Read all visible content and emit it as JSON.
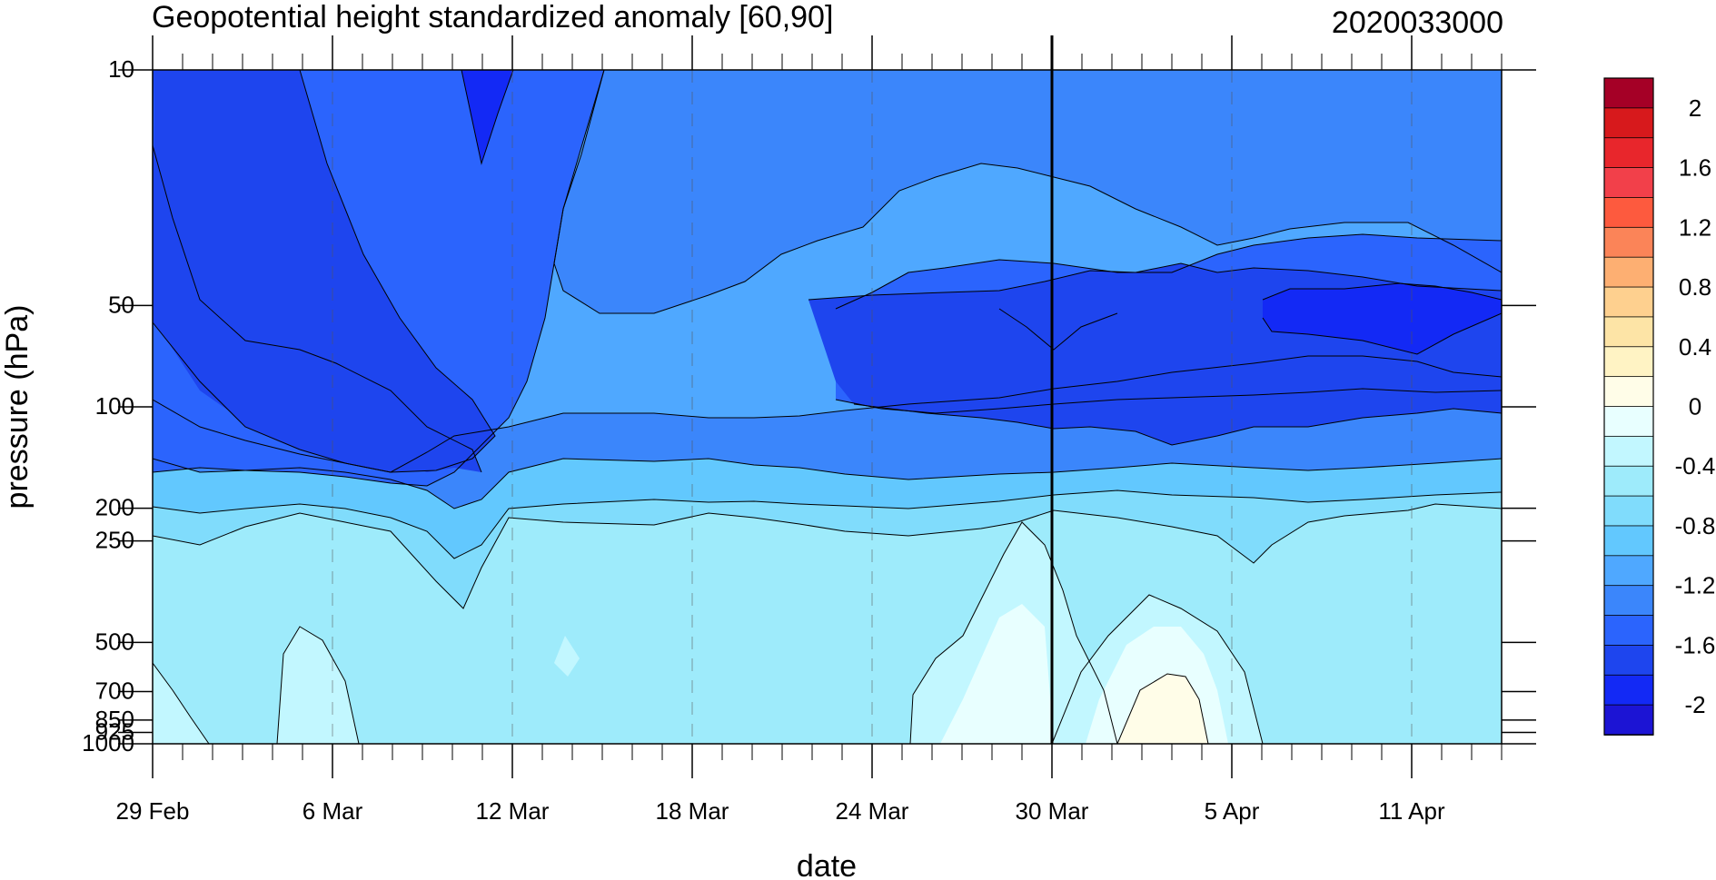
{
  "chart_data": {
    "type": "heatmap",
    "title": "Geopotential height standardized anomaly [60,90]",
    "date_stamp": "2020033000",
    "xlabel": "date",
    "ylabel": "pressure (hPa)",
    "x_ticks": [
      "29 Feb",
      "6 Mar",
      "12 Mar",
      "18 Mar",
      "24 Mar",
      "30 Mar",
      "5 Apr",
      "11 Apr"
    ],
    "x_tick_days": [
      0,
      6,
      12,
      18,
      24,
      30,
      36,
      42
    ],
    "x_range_days": [
      0,
      45
    ],
    "forecast_start_day": 30,
    "y_scale": "log",
    "y_reversed": true,
    "y_ticks": [
      "10",
      "50",
      "100",
      "200",
      "250",
      "500",
      "700",
      "850",
      "925",
      "1000"
    ],
    "y_tick_values": [
      10,
      50,
      100,
      200,
      250,
      500,
      700,
      850,
      925,
      1000
    ],
    "y_range": [
      1000,
      10
    ],
    "colorbar": {
      "labels": [
        "2",
        "1.6",
        "1.2",
        "0.8",
        "0.4",
        "0",
        "-0.4",
        "-0.8",
        "-1.2",
        "-1.6",
        "-2"
      ],
      "levels": [
        2.2,
        2.0,
        1.8,
        1.6,
        1.4,
        1.2,
        1.0,
        0.8,
        0.6,
        0.4,
        0.2,
        0.0,
        -0.2,
        -0.4,
        -0.6,
        -0.8,
        -1.0,
        -1.2,
        -1.4,
        -1.6,
        -1.8,
        -2.0,
        -2.2
      ],
      "colors": [
        "#a50026",
        "#d7191c",
        "#e8262c",
        "#f2404a",
        "#fd5a3e",
        "#fb8458",
        "#fdaf72",
        "#fed08f",
        "#fde4a6",
        "#fff3c4",
        "#fffde8",
        "#e8ffff",
        "#c2f7ff",
        "#9eebfb",
        "#80dcfc",
        "#62c8fe",
        "#4fa8ff",
        "#3b86fb",
        "#2b64fd",
        "#1e45ee",
        "#1329f5",
        "#1c14d4"
      ]
    }
  }
}
